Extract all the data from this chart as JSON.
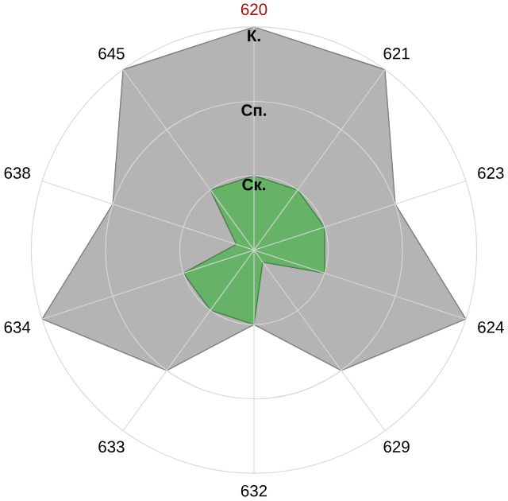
{
  "chart_data": {
    "type": "radar",
    "categories": [
      "620",
      "621",
      "623",
      "624",
      "629",
      "632",
      "633",
      "634",
      "638",
      "645"
    ],
    "ylim": [
      0,
      3
    ],
    "yticks": [
      {
        "value": 1,
        "label": "Ск."
      },
      {
        "value": 2,
        "label": "Сп."
      },
      {
        "value": 3,
        "label": "К."
      }
    ],
    "grid": true,
    "series": [
      {
        "color": "#b4b4b4",
        "values": [
          3,
          3,
          2,
          3,
          2,
          1,
          2,
          3,
          2,
          3
        ]
      },
      {
        "color": "#66b266",
        "values": [
          1,
          1,
          1,
          1,
          0.2,
          1,
          1,
          1,
          0.25,
          1
        ]
      }
    ]
  }
}
